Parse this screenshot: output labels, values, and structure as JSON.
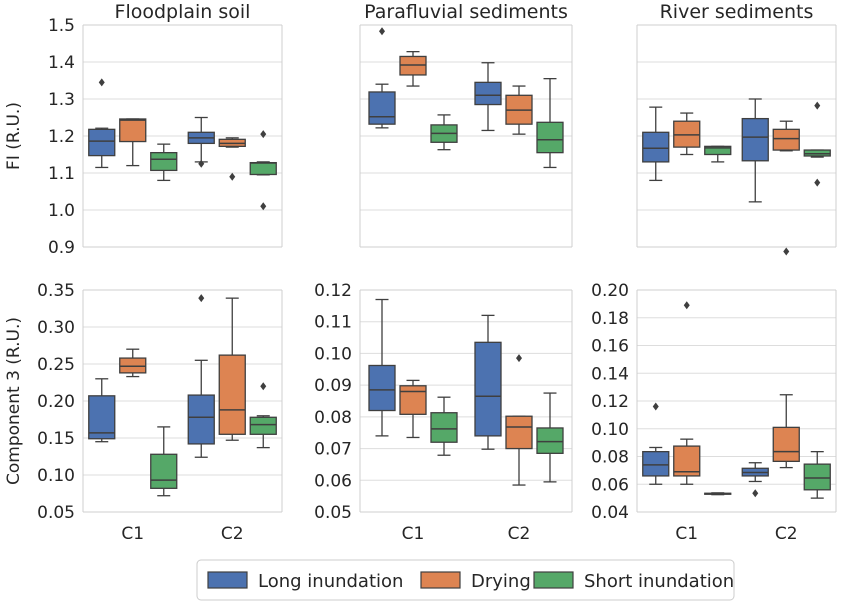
{
  "chart_data": {
    "type": "box",
    "categories": [
      "C1",
      "C2"
    ],
    "legend": {
      "placement": "bottom-center",
      "entries": [
        {
          "name": "Long inundation",
          "color": "#4c72b0"
        },
        {
          "name": "Drying",
          "color": "#dd8452"
        },
        {
          "name": "Short inundation",
          "color": "#55a868"
        }
      ]
    },
    "rows": [
      {
        "ylabel": "FI (R.U.)",
        "ylim": [
          0.9,
          1.5
        ],
        "ticks": [
          0.9,
          1.0,
          1.1,
          1.2,
          1.3,
          1.4,
          1.5
        ],
        "tick_labels": [
          "0.9",
          "1.0",
          "1.1",
          "1.2",
          "1.3",
          "1.4",
          "1.5"
        ]
      },
      {
        "ylabel": "Component 3 (R.U.)",
        "ylim": null,
        "ticks": null,
        "tick_labels": null
      }
    ],
    "panels": [
      {
        "row": 0,
        "col": 0,
        "title": "Floodplain soil",
        "boxes": [
          [
            {
              "wlo": 1.115,
              "q1": 1.147,
              "med": 1.186,
              "q3": 1.218,
              "whi": 1.221,
              "out": [
                1.345
              ]
            },
            {
              "wlo": 1.12,
              "q1": 1.185,
              "med": 1.243,
              "q3": 1.246,
              "whi": 1.246,
              "out": []
            },
            {
              "wlo": 1.08,
              "q1": 1.107,
              "med": 1.137,
              "q3": 1.155,
              "whi": 1.178,
              "out": []
            }
          ],
          [
            {
              "wlo": 1.13,
              "q1": 1.18,
              "med": 1.195,
              "q3": 1.21,
              "whi": 1.25,
              "out": [
                1.125
              ]
            },
            {
              "wlo": 1.17,
              "q1": 1.172,
              "med": 1.18,
              "q3": 1.191,
              "whi": 1.195,
              "out": [
                1.09
              ]
            },
            {
              "wlo": 1.095,
              "q1": 1.096,
              "med": 1.127,
              "q3": 1.128,
              "whi": 1.13,
              "out": [
                1.205,
                1.01
              ]
            }
          ]
        ]
      },
      {
        "row": 0,
        "col": 1,
        "title": "Parafluvial sediments",
        "boxes": [
          [
            {
              "wlo": 1.222,
              "q1": 1.232,
              "med": 1.252,
              "q3": 1.319,
              "whi": 1.34,
              "out": [
                1.483
              ]
            },
            {
              "wlo": 1.335,
              "q1": 1.365,
              "med": 1.392,
              "q3": 1.415,
              "whi": 1.428,
              "out": []
            },
            {
              "wlo": 1.163,
              "q1": 1.183,
              "med": 1.207,
              "q3": 1.23,
              "whi": 1.257,
              "out": []
            }
          ],
          [
            {
              "wlo": 1.215,
              "q1": 1.285,
              "med": 1.31,
              "q3": 1.345,
              "whi": 1.398,
              "out": []
            },
            {
              "wlo": 1.205,
              "q1": 1.232,
              "med": 1.27,
              "q3": 1.31,
              "whi": 1.335,
              "out": []
            },
            {
              "wlo": 1.115,
              "q1": 1.155,
              "med": 1.19,
              "q3": 1.237,
              "whi": 1.355,
              "out": []
            }
          ]
        ]
      },
      {
        "row": 0,
        "col": 2,
        "title": "River sediments",
        "boxes": [
          [
            {
              "wlo": 1.08,
              "q1": 1.13,
              "med": 1.167,
              "q3": 1.21,
              "whi": 1.278,
              "out": []
            },
            {
              "wlo": 1.15,
              "q1": 1.17,
              "med": 1.203,
              "q3": 1.24,
              "whi": 1.262,
              "out": []
            },
            {
              "wlo": 1.13,
              "q1": 1.15,
              "med": 1.168,
              "q3": 1.172,
              "whi": 1.172,
              "out": []
            }
          ],
          [
            {
              "wlo": 1.022,
              "q1": 1.133,
              "med": 1.197,
              "q3": 1.247,
              "whi": 1.3,
              "out": []
            },
            {
              "wlo": 1.16,
              "q1": 1.162,
              "med": 1.193,
              "q3": 1.218,
              "whi": 1.24,
              "out": [
                0.888
              ]
            },
            {
              "wlo": 1.143,
              "q1": 1.146,
              "med": 1.152,
              "q3": 1.162,
              "whi": 1.162,
              "out": [
                1.282,
                1.074
              ]
            }
          ]
        ]
      },
      {
        "row": 1,
        "col": 0,
        "ylim": [
          0.05,
          0.35
        ],
        "ticks": [
          0.05,
          0.1,
          0.15,
          0.2,
          0.25,
          0.3,
          0.35
        ],
        "tick_labels": [
          "0.05",
          "0.10",
          "0.15",
          "0.20",
          "0.25",
          "0.30",
          "0.35"
        ],
        "boxes": [
          [
            {
              "wlo": 0.145,
              "q1": 0.149,
              "med": 0.157,
              "q3": 0.207,
              "whi": 0.23,
              "out": []
            },
            {
              "wlo": 0.233,
              "q1": 0.238,
              "med": 0.247,
              "q3": 0.258,
              "whi": 0.27,
              "out": []
            },
            {
              "wlo": 0.072,
              "q1": 0.082,
              "med": 0.093,
              "q3": 0.128,
              "whi": 0.165,
              "out": []
            }
          ],
          [
            {
              "wlo": 0.124,
              "q1": 0.142,
              "med": 0.178,
              "q3": 0.208,
              "whi": 0.255,
              "out": [
                0.339
              ]
            },
            {
              "wlo": 0.147,
              "q1": 0.155,
              "med": 0.188,
              "q3": 0.262,
              "whi": 0.339,
              "out": []
            },
            {
              "wlo": 0.137,
              "q1": 0.155,
              "med": 0.168,
              "q3": 0.178,
              "whi": 0.18,
              "out": [
                0.22
              ]
            }
          ]
        ]
      },
      {
        "row": 1,
        "col": 1,
        "ylim": [
          0.05,
          0.12
        ],
        "ticks": [
          0.05,
          0.06,
          0.07,
          0.08,
          0.09,
          0.1,
          0.11,
          0.12
        ],
        "tick_labels": [
          "0.05",
          "0.06",
          "0.07",
          "0.08",
          "0.09",
          "0.10",
          "0.11",
          "0.12"
        ],
        "boxes": [
          [
            {
              "wlo": 0.074,
              "q1": 0.082,
              "med": 0.0885,
              "q3": 0.0962,
              "whi": 0.117,
              "out": []
            },
            {
              "wlo": 0.0735,
              "q1": 0.0808,
              "med": 0.088,
              "q3": 0.0898,
              "whi": 0.0915,
              "out": []
            },
            {
              "wlo": 0.0679,
              "q1": 0.072,
              "med": 0.0762,
              "q3": 0.0813,
              "whi": 0.0862,
              "out": []
            }
          ],
          [
            {
              "wlo": 0.0698,
              "q1": 0.074,
              "med": 0.0865,
              "q3": 0.1035,
              "whi": 0.112,
              "out": []
            },
            {
              "wlo": 0.0585,
              "q1": 0.07,
              "med": 0.0768,
              "q3": 0.0802,
              "whi": 0.0802,
              "out": [
                0.0985
              ]
            },
            {
              "wlo": 0.0595,
              "q1": 0.0685,
              "med": 0.0722,
              "q3": 0.0765,
              "whi": 0.0875,
              "out": []
            }
          ]
        ]
      },
      {
        "row": 1,
        "col": 2,
        "ylim": [
          0.04,
          0.2
        ],
        "ticks": [
          0.04,
          0.06,
          0.08,
          0.1,
          0.12,
          0.14,
          0.16,
          0.18,
          0.2
        ],
        "tick_labels": [
          "0.04",
          "0.06",
          "0.08",
          "0.10",
          "0.12",
          "0.14",
          "0.16",
          "0.18",
          "0.20"
        ],
        "boxes": [
          [
            {
              "wlo": 0.06,
              "q1": 0.066,
              "med": 0.074,
              "q3": 0.0835,
              "whi": 0.0865,
              "out": [
                0.116
              ]
            },
            {
              "wlo": 0.06,
              "q1": 0.066,
              "med": 0.069,
              "q3": 0.0875,
              "whi": 0.0925,
              "out": [
                0.189
              ]
            },
            {
              "wlo": 0.0525,
              "q1": 0.0528,
              "med": 0.0532,
              "q3": 0.0535,
              "whi": 0.0538,
              "out": []
            }
          ],
          [
            {
              "wlo": 0.062,
              "q1": 0.066,
              "med": 0.0685,
              "q3": 0.0715,
              "whi": 0.0755,
              "out": [
                0.0535
              ]
            },
            {
              "wlo": 0.072,
              "q1": 0.0765,
              "med": 0.0835,
              "q3": 0.101,
              "whi": 0.1245,
              "out": []
            },
            {
              "wlo": 0.05,
              "q1": 0.056,
              "med": 0.0645,
              "q3": 0.0745,
              "whi": 0.0835,
              "out": []
            }
          ]
        ]
      }
    ]
  }
}
